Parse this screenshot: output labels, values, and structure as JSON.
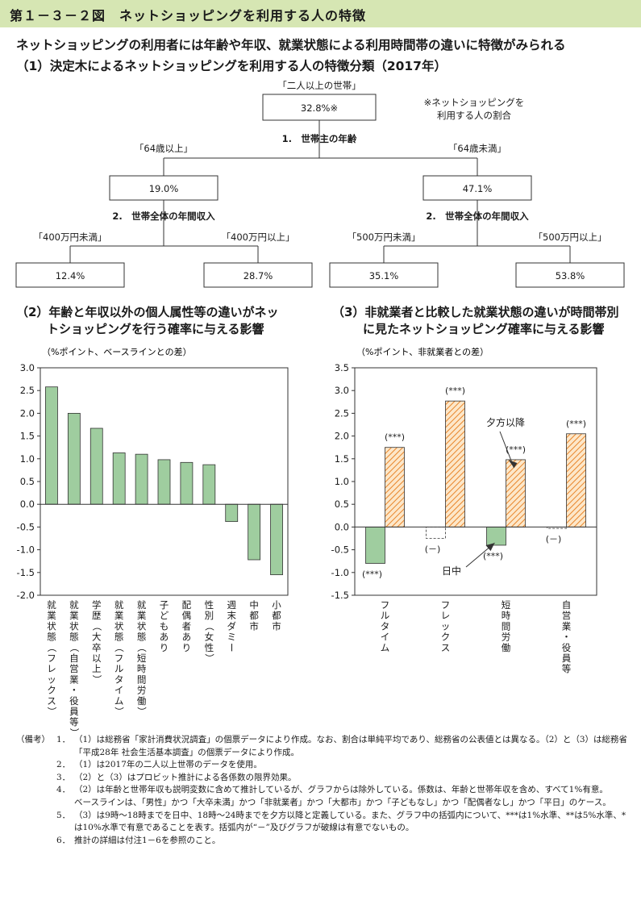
{
  "header": {
    "title": "第１－３－２図　ネットショッピングを利用する人の特徴"
  },
  "subtitle": "ネットショッピングの利用者には年齢や年収、就業状態による利用時間帯の違いに特徴がみられる",
  "section1": {
    "title": "（1）決定木によるネットショッピングを利用する人の特徴分類（2017年）",
    "note": [
      "※ネットショッピングを",
      "利用する人の割合"
    ],
    "root": {
      "label": "「二人以上の世帯」",
      "value": "32.8%※"
    },
    "split1": "1.　世帯主の年齢",
    "left": {
      "label": "「64歳以上」",
      "value": "19.0%",
      "split": "2.　世帯全体の年間収入",
      "children": [
        {
          "label": "「400万円未満」",
          "value": "12.4%"
        },
        {
          "label": "「400万円以上」",
          "value": "28.7%"
        }
      ]
    },
    "right": {
      "label": "「64歳未満」",
      "value": "47.1%",
      "split": "2.　世帯全体の年間収入",
      "children": [
        {
          "label": "「500万円未満」",
          "value": "35.1%"
        },
        {
          "label": "「500万円以上」",
          "value": "53.8%"
        }
      ]
    }
  },
  "section2": {
    "title_lines": [
      "（2）年齢と年収以外の個人属性等の違いがネッ",
      "トショッピングを行う確率に与える影響"
    ]
  },
  "section3": {
    "title_lines": [
      "（3）非就業者と比較した就業状態の違いが時間帯別",
      "に見たネットショッピング確率に与える影響"
    ]
  },
  "chart_data": [
    {
      "type": "bar",
      "ylabel": "（%ポイント、ベースラインとの差）",
      "ylim": [
        -2.0,
        3.0
      ],
      "yticks": [
        "3.0",
        "2.5",
        "2.0",
        "1.5",
        "1.0",
        "0.5",
        "0.0",
        "-0.5",
        "-1.0",
        "-1.5",
        "-2.0"
      ],
      "categories": [
        "就業状態（フレックス）",
        "就業状態（自営業・役員等）",
        "学歴（大卒以上）",
        "就業状態（フルタイム）",
        "就業状態（短時間労働）",
        "子どもあり",
        "配偶者あり",
        "性別（女性）",
        "週末ダミー",
        "中都市",
        "小都市"
      ],
      "values": [
        2.58,
        2.0,
        1.67,
        1.13,
        1.1,
        0.98,
        0.92,
        0.87,
        -0.38,
        -1.22,
        -1.55
      ],
      "color": "#9fcd9f"
    },
    {
      "type": "bar",
      "ylabel": "（%ポイント、非就業者との差）",
      "ylim": [
        -1.5,
        3.5
      ],
      "yticks": [
        "3.5",
        "3.0",
        "2.5",
        "2.0",
        "1.5",
        "1.0",
        "0.5",
        "0.0",
        "-0.5",
        "-1.0",
        "-1.5"
      ],
      "categories": [
        "フルタイム",
        "フレックス",
        "短時間労働",
        "自営業・役員等"
      ],
      "series": [
        {
          "name": "日中",
          "values": [
            -0.8,
            -0.25,
            -0.4,
            -0.03
          ],
          "labels": [
            "(***)",
            "(－)",
            "(***)",
            "(－)"
          ],
          "color": "#9fcd9f"
        },
        {
          "name": "夕方以降",
          "values": [
            1.75,
            2.77,
            1.48,
            2.05
          ],
          "labels": [
            "(***)",
            "(***)",
            "(***)",
            "(***)"
          ],
          "color": "#f2a55c"
        }
      ]
    }
  ],
  "notes": {
    "lead": "（備考）",
    "items": [
      {
        "num": "1．",
        "text": "（1）は総務省「家計消費状況調査」の個票データにより作成。なお、割合は単純平均であり、総務省の公表値とは異なる。（2）と（3）は総務省「平成28年 社会生活基本調査」の個票データにより作成。"
      },
      {
        "num": "2．",
        "text": "（1）は2017年の二人以上世帯のデータを使用。"
      },
      {
        "num": "3．",
        "text": "（2）と（3）はプロビット推計による各係数の限界効果。"
      },
      {
        "num": "4．",
        "text": "（2）は年齢と世帯年収も説明変数に含めて推計しているが、グラフからは除外している。係数は、年齢と世帯年収を含め、すべて1%有意。"
      },
      {
        "num": "",
        "text": "ベースラインは、「男性」かつ「大卒未満」かつ「非就業者」かつ「大都市」かつ「子どもなし」かつ「配偶者なし」かつ「平日」のケース。"
      },
      {
        "num": "5．",
        "text": "（3）は9時～18時までを日中、18時～24時までを夕方以降と定義している。また、グラフ中の括弧内について、***は1%水準、**は5%水準、*は10%水準で有意であることを表す。括弧内が“－”及びグラフが破線は有意でないもの。"
      },
      {
        "num": "6．",
        "text": "推計の詳細は付注1－6を参照のこと。"
      }
    ]
  }
}
